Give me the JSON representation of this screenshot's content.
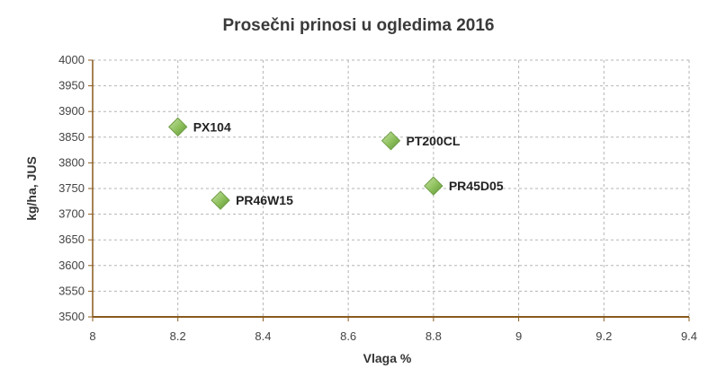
{
  "chart_data": {
    "type": "scatter",
    "title": "Prosečni prinosi u ogledima 2016",
    "xlabel": "Vlaga %",
    "ylabel": "kg/ha, JUS",
    "xlim": [
      8,
      9.4
    ],
    "ylim": [
      3500,
      4000
    ],
    "x_ticks": [
      "8",
      "8.2",
      "8.4",
      "8.6",
      "8.8",
      "9",
      "9.2",
      "9.4"
    ],
    "y_ticks": [
      "3500",
      "3550",
      "3600",
      "3650",
      "3700",
      "3750",
      "3800",
      "3850",
      "3900",
      "3950",
      "4000"
    ],
    "grid": true,
    "marker_color": "#8cbf5a",
    "points": [
      {
        "label": "PX104",
        "x": 8.2,
        "y": 3870
      },
      {
        "label": "PR46W15",
        "x": 8.3,
        "y": 3727
      },
      {
        "label": "PT200CL",
        "x": 8.7,
        "y": 3843
      },
      {
        "label": "PR45D05",
        "x": 8.8,
        "y": 3755
      }
    ]
  }
}
